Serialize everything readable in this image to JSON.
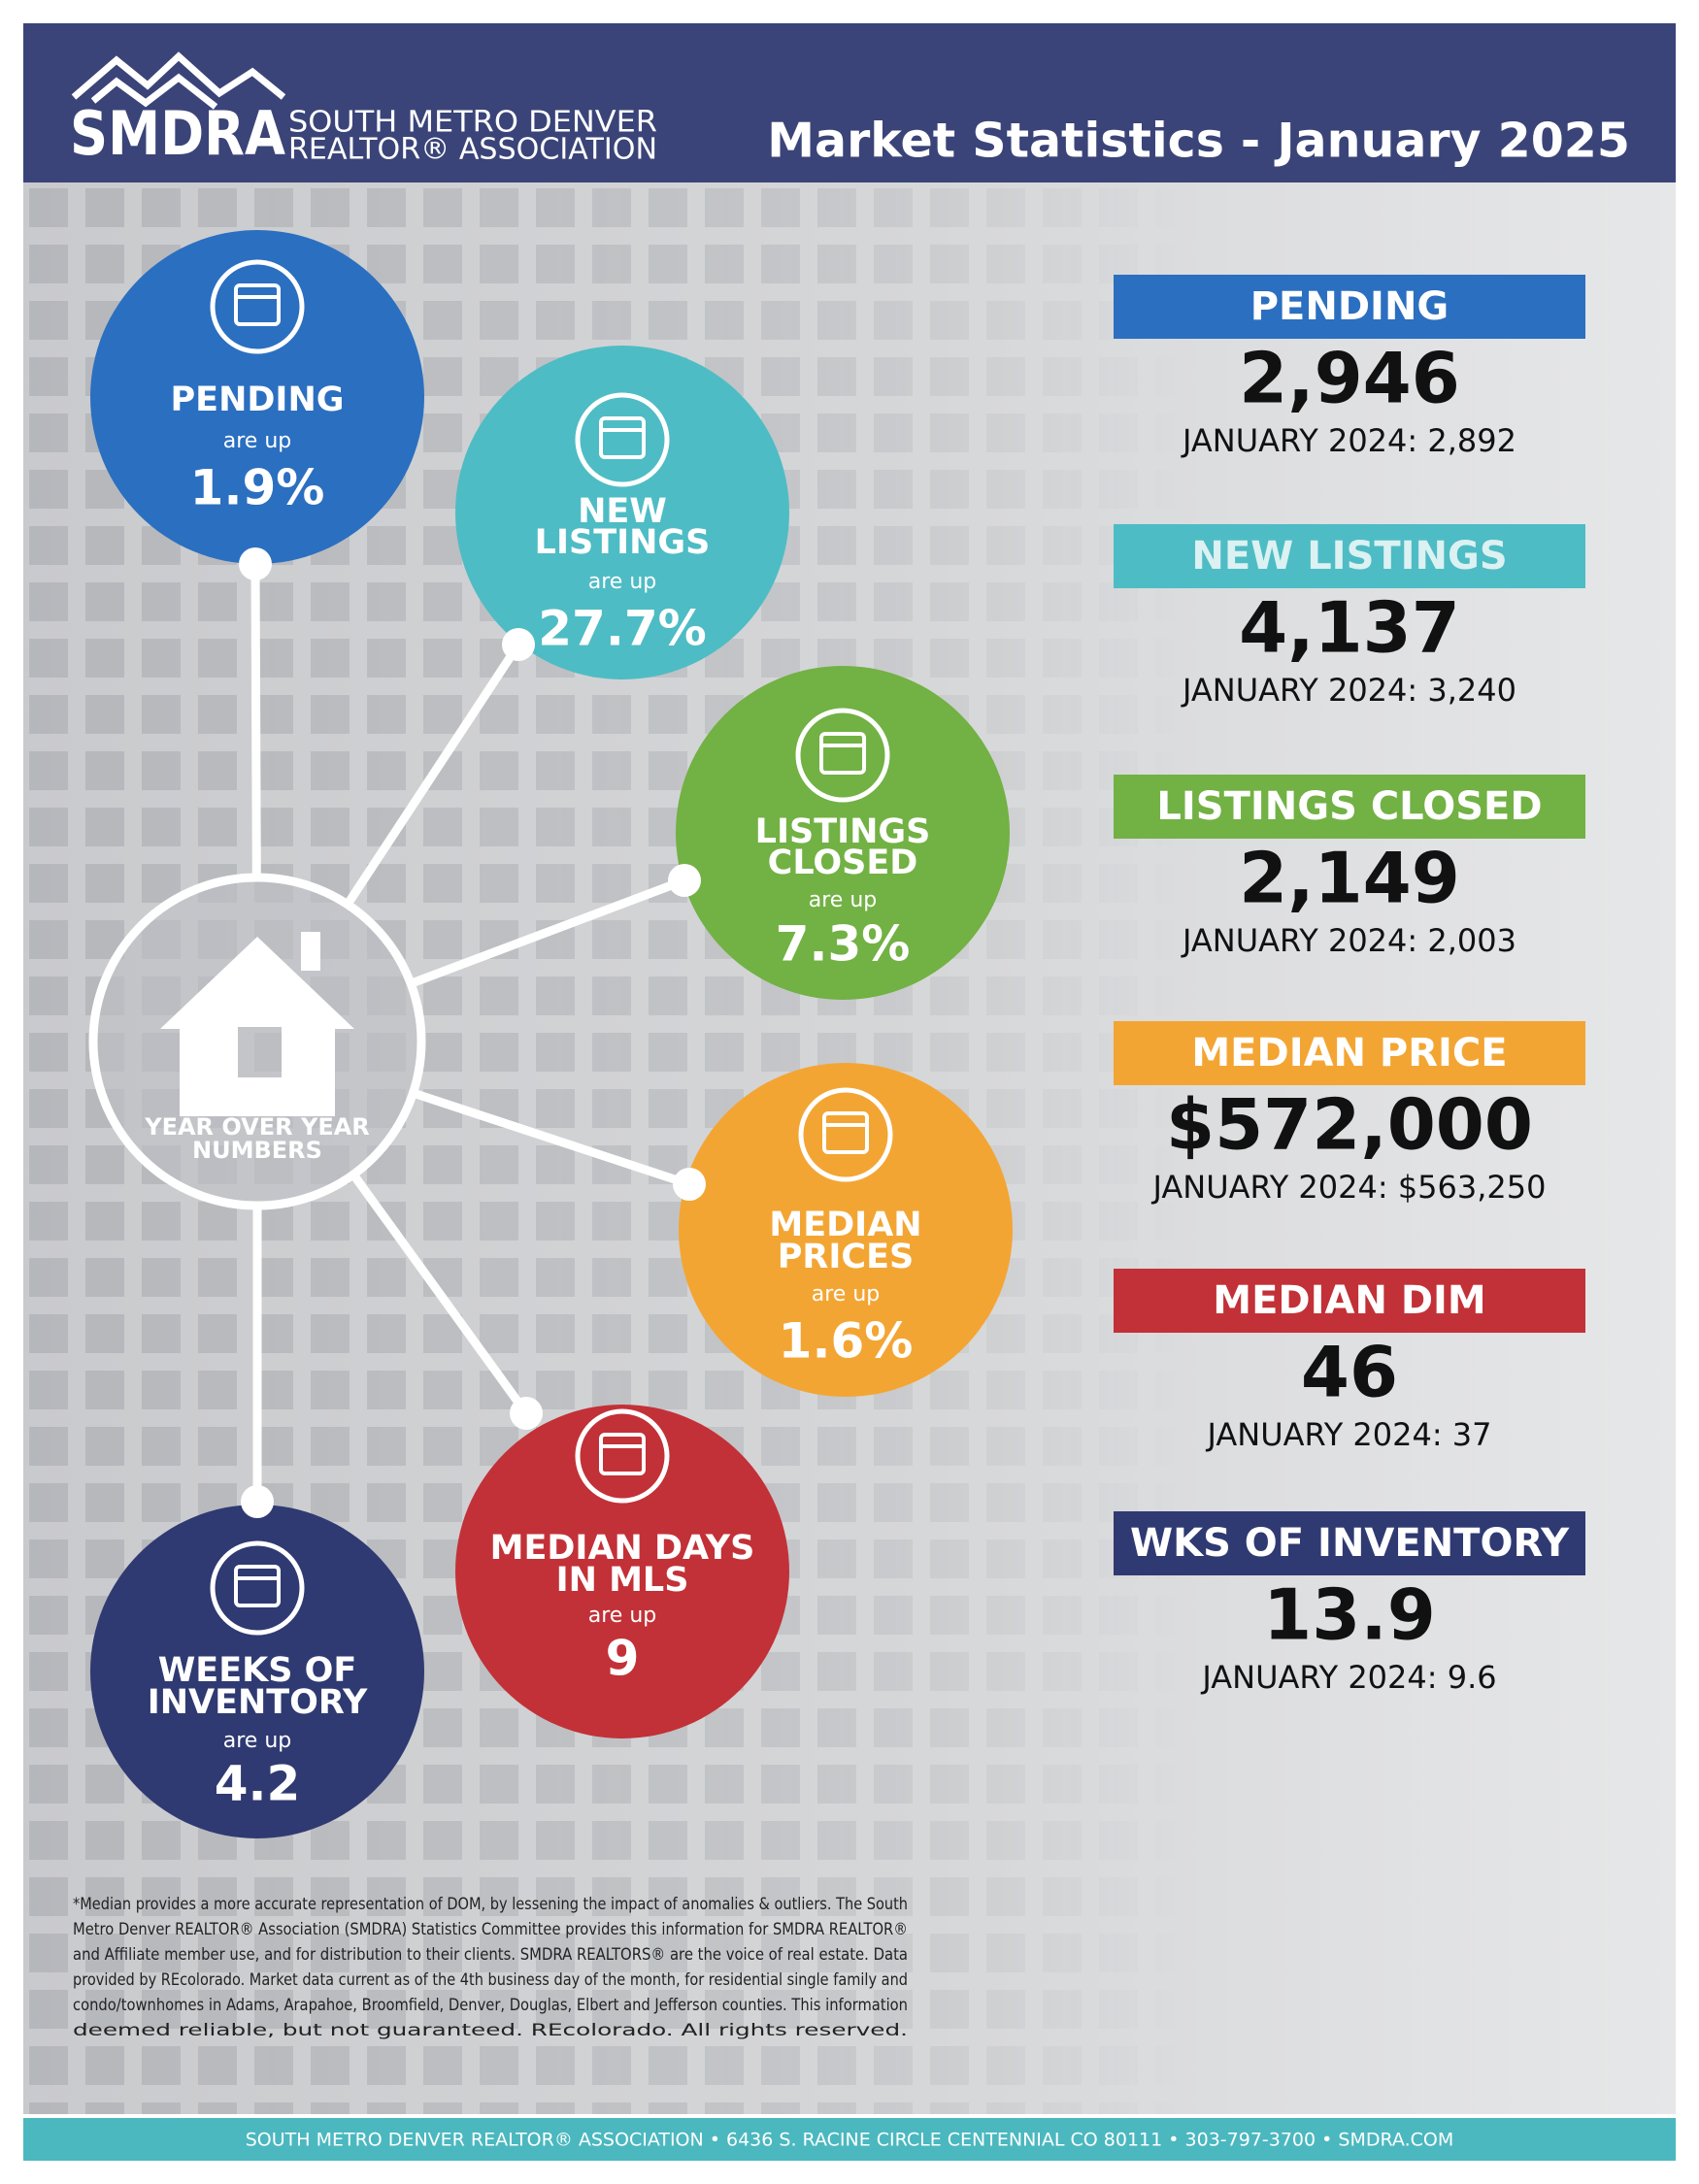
{
  "header": {
    "logo": "SMDRA",
    "org_line1": "SOUTH METRO DENVER",
    "org_line2": "REALTOR® ASSOCIATION",
    "title": "Market Statistics - January 2025"
  },
  "hub": {
    "lines": [
      "YEAR OVER YEAR",
      "NUMBERS"
    ]
  },
  "circles": [
    {
      "label_lines": [
        "PENDING"
      ],
      "sub": "are up",
      "change": "1.9%"
    },
    {
      "label_lines": [
        "NEW",
        "LISTINGS"
      ],
      "sub": "are up",
      "change": "27.7%"
    },
    {
      "label_lines": [
        "LISTINGS",
        "CLOSED"
      ],
      "sub": "are up",
      "change": "7.3%"
    },
    {
      "label_lines": [
        "MEDIAN",
        "PRICES"
      ],
      "sub": "are up",
      "change": "1.6%"
    },
    {
      "label_lines": [
        "MEDIAN DAYS",
        "IN MLS"
      ],
      "sub": "are up",
      "change": "9"
    },
    {
      "label_lines": [
        "WEEKS OF",
        "INVENTORY"
      ],
      "sub": "are up",
      "change": "4.2"
    }
  ],
  "stats": [
    {
      "label": "PENDING",
      "value": "2,946",
      "comparison": "JANUARY 2024: 2,892"
    },
    {
      "label": "NEW LISTINGS",
      "value": "4,137",
      "comparison": "JANUARY 2024: 3,240"
    },
    {
      "label": "LISTINGS CLOSED",
      "value": "2,149",
      "comparison": "JANUARY 2024: 2,003"
    },
    {
      "label": "MEDIAN PRICE",
      "value": "$572,000",
      "comparison": "JANUARY 2024: $563,250"
    },
    {
      "label": "MEDIAN DIM",
      "value": "46",
      "comparison": "JANUARY 2024: 37"
    },
    {
      "label": "WKS OF INVENTORY",
      "value": "13.9",
      "comparison": "JANUARY 2024: 9.6"
    }
  ],
  "footnote": [
    "*Median provides a more accurate representation of DOM, by lessening the impact of anomalies & outliers. The South",
    "Metro Denver REALTOR® Association (SMDRA) Statistics Committee provides this information for SMDRA REALTOR®",
    "and Affiliate member use, and for distribution to their clients. SMDRA REALTORS® are the voice of real estate. Data",
    "provided by REcolorado. Market data current as of the 4th business day of the month, for residential single family and",
    "condo/townhomes in Adams, Arapahoe, Broomfield, Denver, Douglas, Elbert and Jefferson counties. This information",
    "deemed reliable, but not guaranteed. REcolorado. All rights reserved."
  ],
  "footer": "SOUTH METRO DENVER REALTOR® ASSOCIATION • 6436 S. RACINE CIRCLE CENTENNIAL CO 80111 • 303-797-3700 • SMDRA.COM"
}
